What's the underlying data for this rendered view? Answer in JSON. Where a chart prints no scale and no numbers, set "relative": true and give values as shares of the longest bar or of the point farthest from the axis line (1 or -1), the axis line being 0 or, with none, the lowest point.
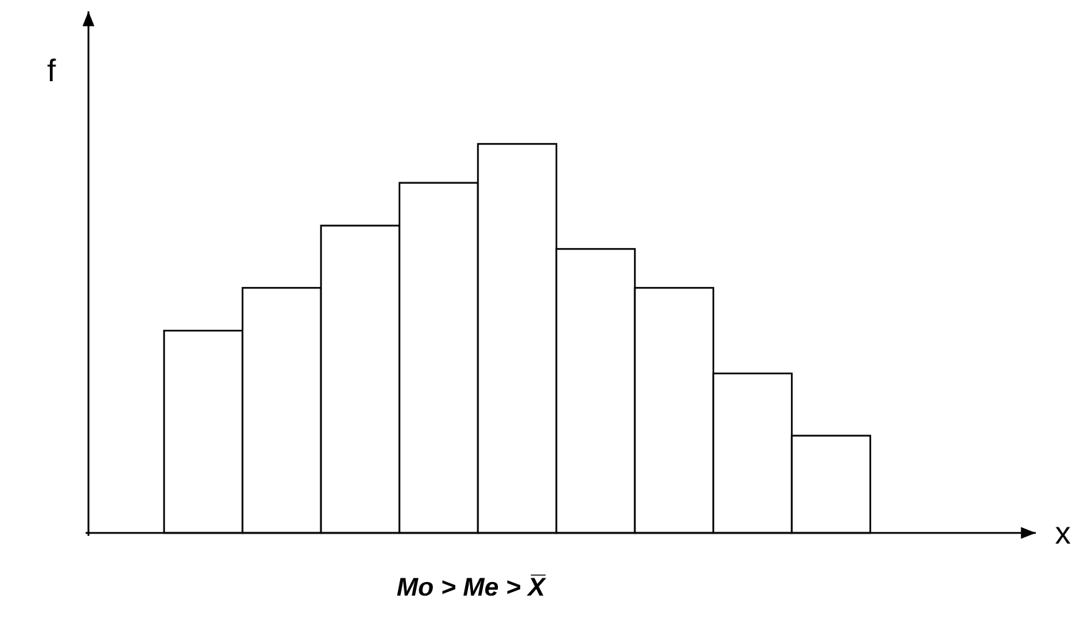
{
  "chart_data": {
    "type": "bar",
    "relative": true,
    "categories": [
      null,
      null,
      null,
      null,
      null,
      null,
      null,
      null,
      null
    ],
    "values": [
      0.52,
      0.63,
      0.79,
      0.9,
      1,
      0.73,
      0.63,
      0.41,
      0.25
    ],
    "color": "#ffffff",
    "ylabel": "f",
    "annotations": [
      "x",
      "Mo > Me > X̅"
    ]
  }
}
